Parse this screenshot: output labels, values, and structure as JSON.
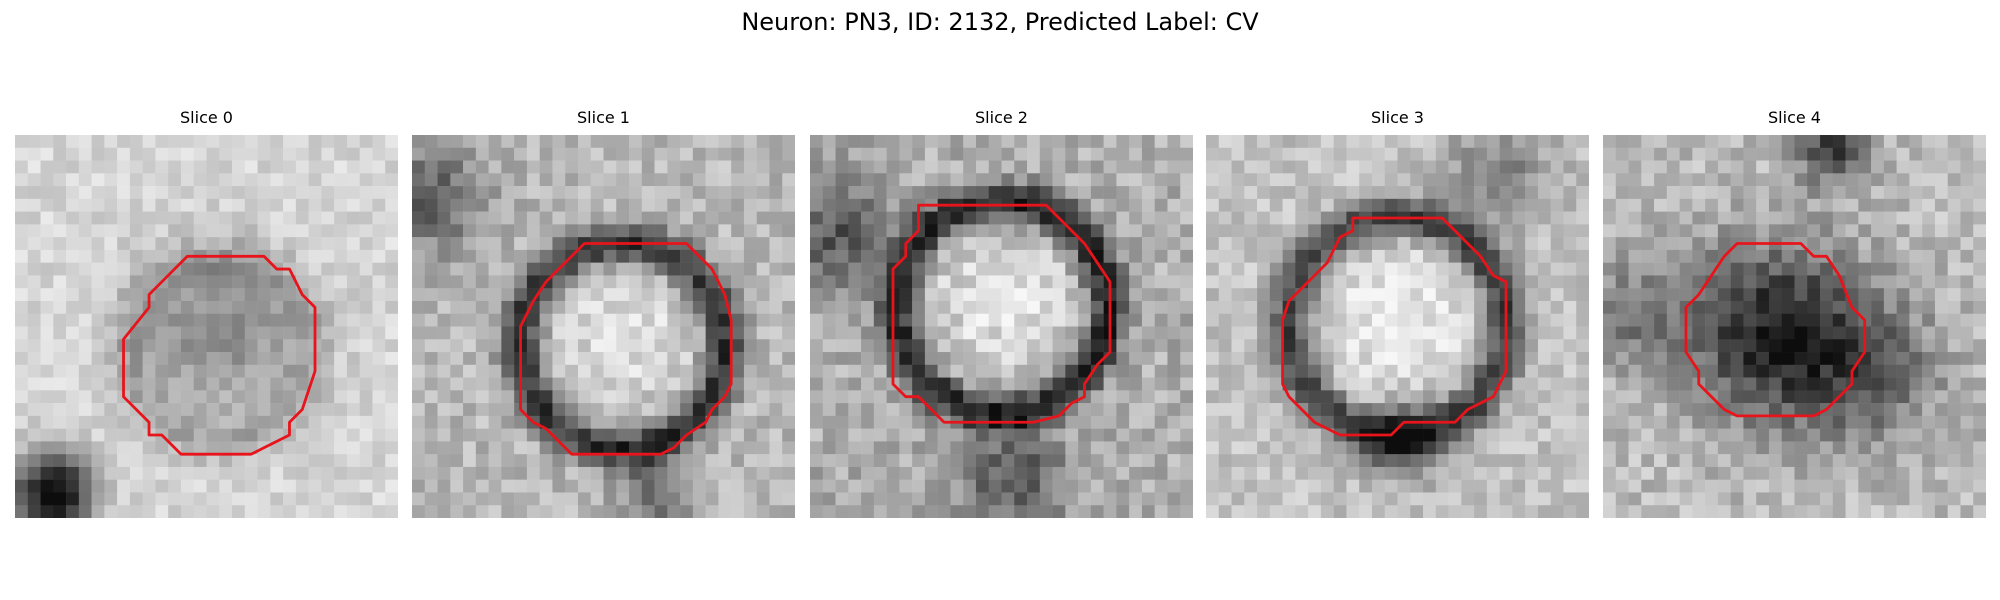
{
  "figure": {
    "title": "Neuron: PN3, ID: 2132, Predicted Label: CV"
  },
  "panels": [
    {
      "title": "Slice 0"
    },
    {
      "title": "Slice 1"
    },
    {
      "title": "Slice 2"
    },
    {
      "title": "Slice 3"
    },
    {
      "title": "Slice 4"
    }
  ],
  "colors": {
    "contour": "#e8141b",
    "background": "#ffffff"
  }
}
